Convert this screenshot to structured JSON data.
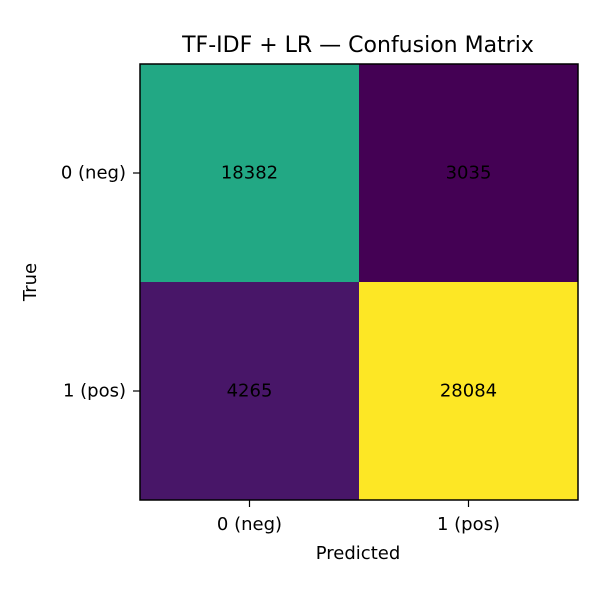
{
  "chart_data": {
    "type": "heatmap",
    "title": "TF-IDF + LR — Confusion Matrix",
    "xlabel": "Predicted",
    "ylabel": "True",
    "x_categories": [
      "0 (neg)",
      "1 (pos)"
    ],
    "y_categories": [
      "0 (neg)",
      "1 (pos)"
    ],
    "values": [
      [
        18382,
        3035
      ],
      [
        4265,
        28084
      ]
    ],
    "colormap": "viridis",
    "cell_colors": [
      [
        "#22a884",
        "#440154"
      ],
      [
        "#481668",
        "#fde725"
      ]
    ],
    "grid": false,
    "legend": "none"
  }
}
